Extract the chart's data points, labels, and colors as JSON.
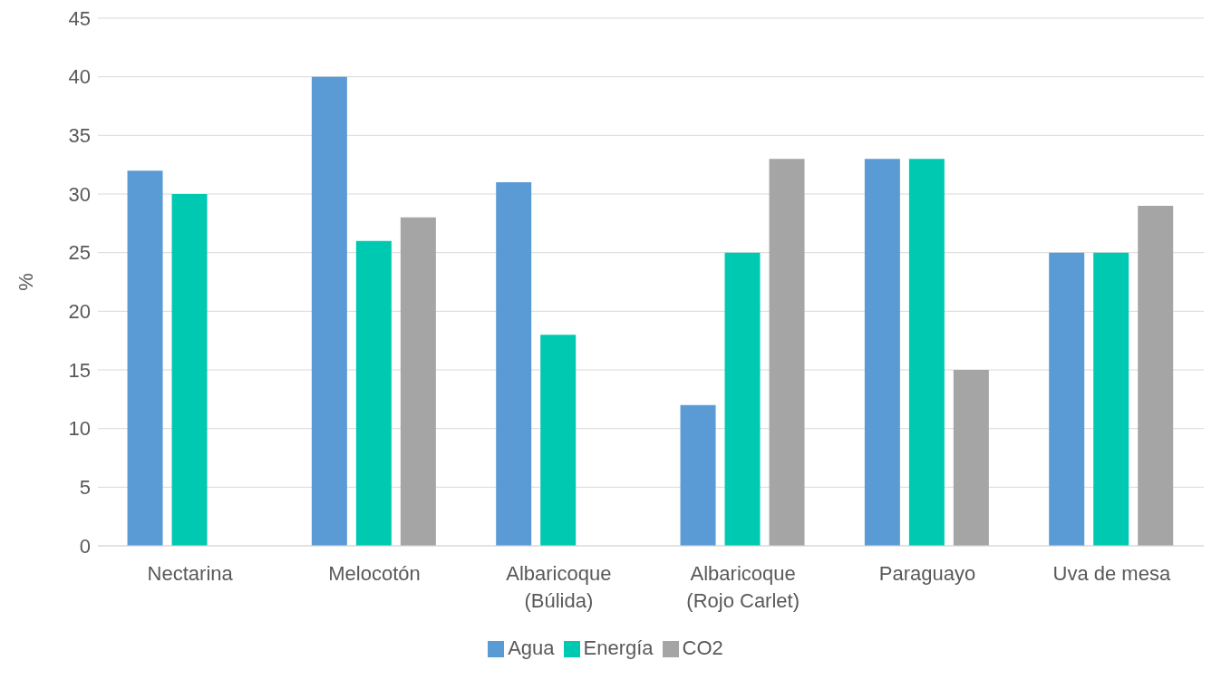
{
  "chart_data": {
    "type": "bar",
    "ylabel": "%",
    "categories": [
      "Nectarina",
      "Melocotón",
      "Albaricoque (Búlida)",
      "Albaricoque (Rojo Carlet)",
      "Paraguayo",
      "Uva de mesa"
    ],
    "series": [
      {
        "name": "Agua",
        "color": "#5b9bd5",
        "values": [
          32,
          40,
          31,
          12,
          33,
          25
        ]
      },
      {
        "name": "Energía",
        "color": "#00c9b1",
        "values": [
          30,
          26,
          18,
          25,
          33,
          25
        ]
      },
      {
        "name": "CO2",
        "color": "#a5a5a5",
        "values": [
          null,
          28,
          null,
          33,
          15,
          29
        ]
      }
    ],
    "ylim": [
      0,
      45
    ],
    "yticks": [
      0,
      5,
      10,
      15,
      20,
      25,
      30,
      35,
      40,
      45
    ],
    "grid": "y",
    "legend": "bottom"
  }
}
